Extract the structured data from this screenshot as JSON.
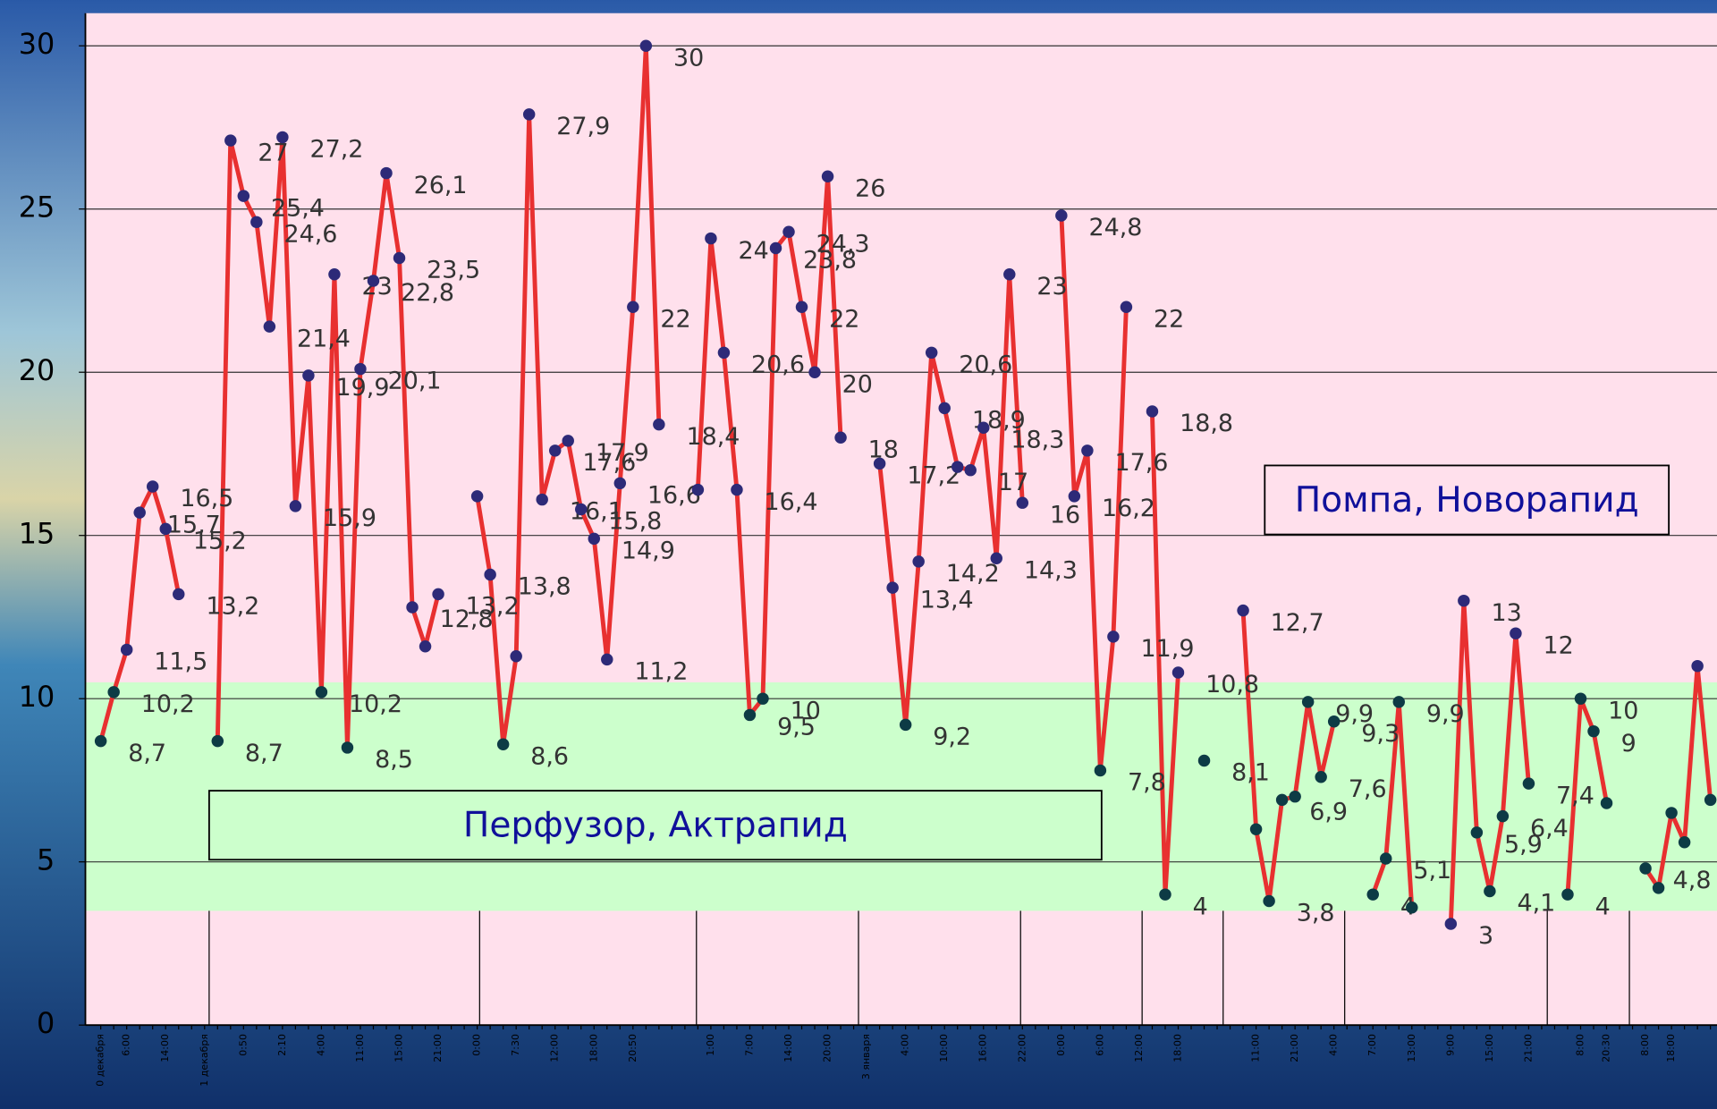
{
  "chart_data": {
    "type": "line",
    "color": "#e83030",
    "marker_color": "#2d2a78",
    "band_marker_color": "#0d3b45",
    "ylim": [
      0,
      31
    ],
    "yticks": [
      0,
      5,
      10,
      15,
      20,
      25,
      30
    ],
    "grid": true,
    "bands": [
      {
        "from": 3.5,
        "to": 10.5,
        "color": "#ccffcc"
      }
    ],
    "background": "#ffe0ec",
    "annotations": [
      {
        "text": "Помпа, Новорапид",
        "fill": "#ffe0ec"
      },
      {
        "text": "Перфузор, Актрапид",
        "fill": "#ccffcc"
      }
    ],
    "categories": [
      "0 декабря",
      null,
      "6:00",
      null,
      null,
      "14:00",
      null,
      null,
      "1 декабря",
      null,
      null,
      "0:50",
      null,
      null,
      "2:10",
      null,
      null,
      "4:00",
      null,
      null,
      "11:00",
      null,
      null,
      "15:00",
      null,
      null,
      "21:00",
      null,
      null,
      "0:00",
      null,
      null,
      "7:30",
      null,
      null,
      "12:00",
      null,
      null,
      "18:00",
      null,
      null,
      "20:50",
      null,
      null,
      null,
      null,
      null,
      "1:00",
      null,
      null,
      "7:00",
      null,
      null,
      "14:00",
      null,
      null,
      "20:00",
      null,
      null,
      "3 января",
      null,
      null,
      "4:00",
      null,
      null,
      "10:00",
      null,
      null,
      "16:00",
      null,
      null,
      "22:00",
      null,
      null,
      "0:00",
      null,
      null,
      "6:00",
      null,
      null,
      "12:00",
      null,
      null,
      "18:00",
      null,
      null,
      null,
      null,
      null,
      "11:00",
      null,
      null,
      "21:00",
      null,
      null,
      "4:00",
      null,
      null,
      "7:00",
      null,
      null,
      "13:00",
      null,
      null,
      "9:00",
      null,
      null,
      "15:00",
      null,
      null,
      "21:00",
      null,
      null,
      null,
      "8:00",
      null,
      "20:30",
      null,
      null,
      "8:00",
      null,
      "18:00",
      null,
      null,
      null
    ],
    "values": [
      8.7,
      10.2,
      11.5,
      15.7,
      16.5,
      15.2,
      13.2,
      null,
      null,
      8.7,
      27.1,
      25.4,
      24.6,
      21.4,
      27.2,
      15.9,
      19.9,
      10.2,
      23,
      8.5,
      20.1,
      22.8,
      26.1,
      23.5,
      12.8,
      11.6,
      13.2,
      null,
      null,
      16.2,
      13.8,
      8.6,
      11.3,
      27.9,
      16.1,
      17.6,
      17.9,
      15.8,
      14.9,
      11.2,
      16.6,
      22,
      30,
      18.4,
      null,
      null,
      16.4,
      24.1,
      20.6,
      16.4,
      9.5,
      10,
      23.8,
      24.3,
      22,
      20,
      26,
      18,
      null,
      null,
      17.2,
      13.4,
      9.2,
      14.2,
      20.6,
      18.9,
      17.1,
      17,
      18.3,
      14.3,
      23,
      16,
      null,
      null,
      24.8,
      16.2,
      17.6,
      7.8,
      11.9,
      22,
      null,
      18.8,
      4,
      10.8,
      null,
      8.1,
      null,
      null,
      12.7,
      6,
      3.8,
      6.9,
      7,
      9.9,
      7.6,
      9.3,
      null,
      null,
      4,
      5.1,
      9.9,
      3.6,
      null,
      null,
      3.1,
      13,
      5.9,
      4.1,
      6.4,
      12,
      7.4,
      null,
      null,
      4,
      10,
      9,
      6.8,
      null,
      null,
      4.8,
      4.2,
      6.5,
      5.6,
      11,
      6.9
    ],
    "value_labels": [
      "8,7",
      "10,2",
      "11,5",
      "15,7",
      "16,5",
      "15,2",
      "13,2",
      null,
      null,
      "8,7",
      "27",
      "25,4",
      "24,6",
      "21,4",
      "27,2",
      "15,9",
      "19,9",
      "10,2",
      "23",
      "8,5",
      "20,1",
      "22,8",
      "26,1",
      "23,5",
      "12,8",
      null,
      "13,2",
      null,
      null,
      null,
      "13,8",
      "8,6",
      null,
      "27,9",
      "16,1",
      "17,6",
      "17,9",
      "15,8",
      "14,9",
      "11,2",
      "16,6",
      "22",
      "30",
      "18,4",
      null,
      null,
      null,
      "24",
      "20,6",
      "16,4",
      "9,5",
      "10",
      "23,8",
      "24,3",
      "22",
      "20",
      "26",
      "18",
      null,
      null,
      "17,2",
      "13,4",
      "9,2",
      "14,2",
      "20,6",
      "18,9",
      null,
      "17",
      "18,3",
      "14,3",
      "23",
      "16",
      null,
      null,
      "24,8",
      "16,2",
      "17,6",
      "7,8",
      "11,9",
      "22",
      null,
      "18,8",
      "4",
      "10,8",
      null,
      "8,1",
      null,
      null,
      "12,7",
      null,
      "3,8",
      "6,9",
      null,
      "9,9",
      "7,6",
      "9,3",
      null,
      null,
      "4",
      "5,1",
      "9,9",
      null,
      null,
      null,
      "3",
      "13",
      "5,9",
      "4,1",
      "6,4",
      "12",
      "7,4",
      null,
      null,
      "4",
      "10",
      "9",
      null,
      null,
      null,
      "4,8",
      null,
      null,
      null,
      null,
      null
    ]
  }
}
